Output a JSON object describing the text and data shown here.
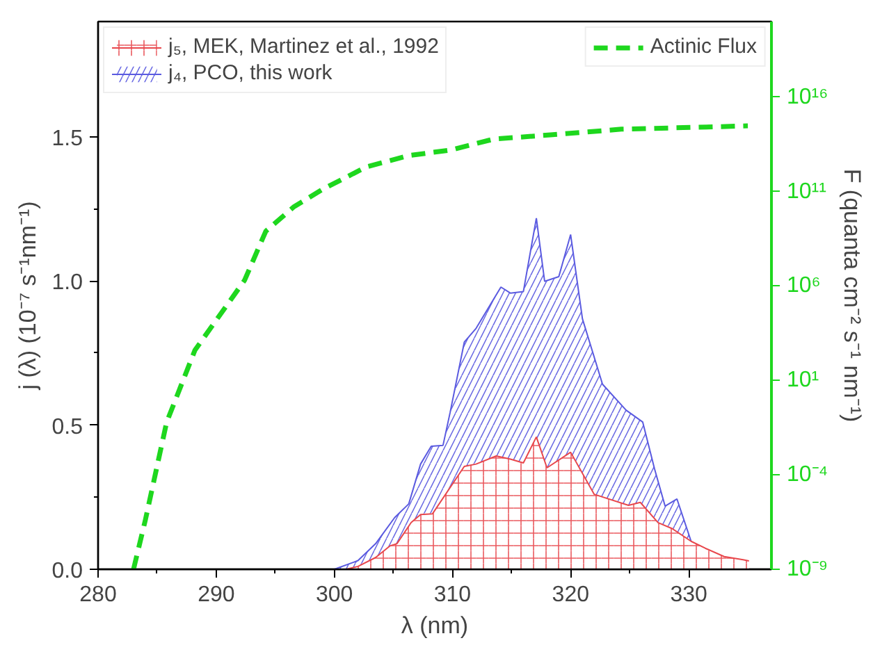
{
  "chart_data": {
    "type": "area",
    "xlabel": "λ (nm)",
    "ylabel": "j (λ) (10⁻⁷ s⁻¹nm⁻¹)",
    "y2label": "F (quanta cm⁻² s⁻¹ nm⁻¹)",
    "xlim": [
      280,
      337
    ],
    "xticks": [
      280,
      290,
      300,
      310,
      320,
      330
    ],
    "ylim": [
      0,
      1.9
    ],
    "yticks": [
      {
        "value": 0,
        "label": "0.0"
      },
      {
        "value": 0.5,
        "label": "0.5"
      },
      {
        "value": 1,
        "label": "1.0"
      },
      {
        "value": 1.5,
        "label": "1.5"
      }
    ],
    "y2lim": [
      1e-09,
      1e+20
    ],
    "y2ticks": [
      {
        "value": 1e-09,
        "label": "10⁻⁹"
      },
      {
        "value": 0.0001,
        "label": "10⁻⁴"
      },
      {
        "value": 10,
        "label": "10¹"
      },
      {
        "value": 1000000.0,
        "label": "10⁶"
      },
      {
        "value": 100000000000.0,
        "label": "10¹¹"
      },
      {
        "value": 1e+16,
        "label": "10¹⁶"
      }
    ],
    "log": "y2",
    "grid": false,
    "legend": "top",
    "series": [
      {
        "name": "j₅, MEK, Martinez et al., 1992",
        "color": "#e8474c",
        "x": [
          301,
          302,
          303.5,
          304.7,
          305.3,
          306.5,
          307.3,
          308.3,
          311.0,
          312.0,
          313.7,
          314.9,
          316.0,
          317.1,
          318.0,
          320.0,
          322.0,
          324.9,
          325.9,
          327.4,
          328.6,
          330.2,
          331.4,
          333.0,
          334.6,
          335.1
        ],
        "values": [
          0,
          0.01,
          0.041,
          0.081,
          0.089,
          0.162,
          0.19,
          0.192,
          0.357,
          0.365,
          0.393,
          0.382,
          0.369,
          0.459,
          0.352,
          0.406,
          0.26,
          0.222,
          0.232,
          0.162,
          0.141,
          0.097,
          0.073,
          0.044,
          0.033,
          0.029
        ]
      },
      {
        "name": "j₄, PCO, this work",
        "color": "#5a5ae0",
        "x": [
          300,
          302,
          303.5,
          305.1,
          306.3,
          307.3,
          308.2,
          309.2,
          309.8,
          311.0,
          312.0,
          314.1,
          314.9,
          316.0,
          317.1,
          317.8,
          319.0,
          320.0,
          321.0,
          322.7,
          324.7,
          326.1,
          327.1,
          328.0,
          329.0,
          330.2
        ],
        "values": [
          0,
          0.03,
          0.089,
          0.179,
          0.227,
          0.365,
          0.427,
          0.43,
          0.544,
          0.788,
          0.836,
          0.979,
          0.958,
          0.963,
          1.218,
          0.999,
          1.015,
          1.161,
          0.869,
          0.642,
          0.552,
          0.511,
          0.349,
          0.219,
          0.244,
          0.097
        ]
      },
      {
        "name": "Actinic Flux",
        "type": "line",
        "axis": "y2",
        "color": "#1ed71e",
        "line_style": "dashed",
        "x": [
          283,
          284,
          285.8,
          288.2,
          292.4,
          294.2,
          296.6,
          299,
          302.7,
          306.3,
          309.9,
          313.5,
          318.3,
          324.3,
          330.4,
          335
        ],
        "values": [
          1e-09,
          4e-07,
          0.06,
          400.0,
          2000000.0,
          800000000.0,
          16000000000.0,
          130000000000.0,
          2000000000000.0,
          8000000000000.0,
          16000000000000.0,
          60000000000000.0,
          100000000000000.0,
          200000000000000.0,
          250000000000000.0,
          300000000000000.0
        ]
      }
    ]
  }
}
